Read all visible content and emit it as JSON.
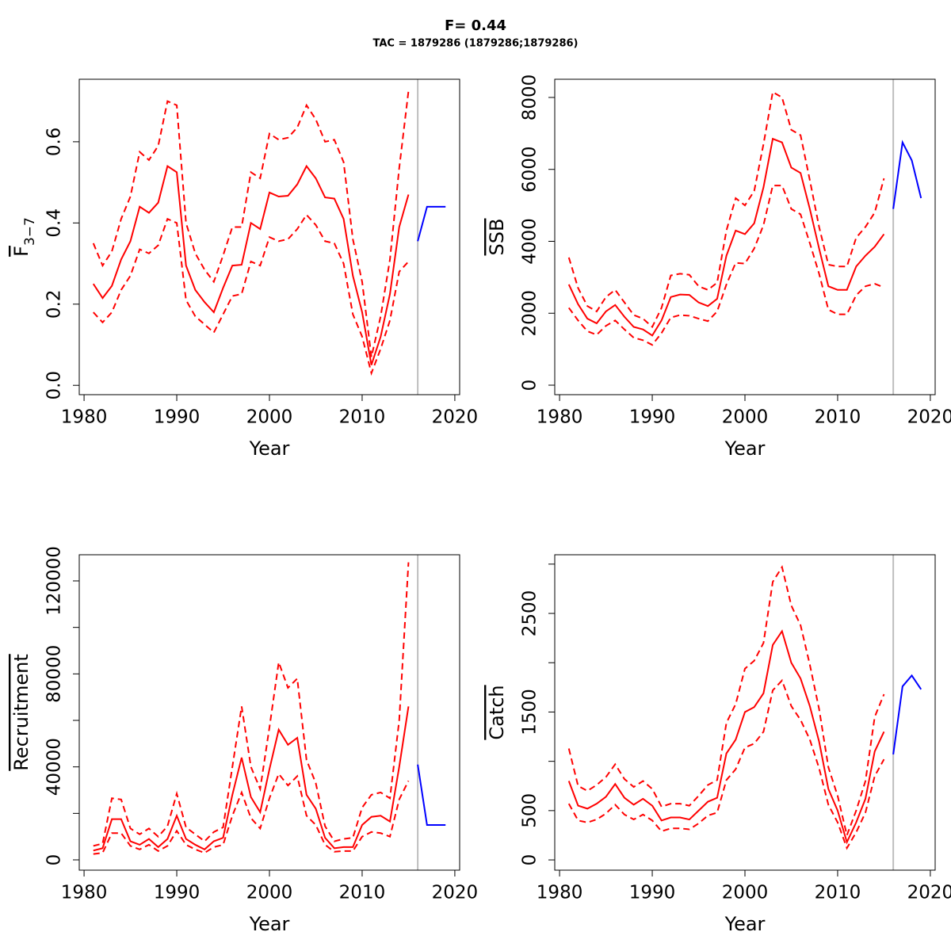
{
  "title": "F= 0.44",
  "subtitle": "TAC = 1879286 (1879286;1879286)",
  "chart_data": [
    {
      "type": "line",
      "xlabel": "Year",
      "ylabel": "F",
      "ylabel_sub": "3−7",
      "x": [
        1981,
        1982,
        1983,
        1984,
        1985,
        1986,
        1987,
        1988,
        1989,
        1990,
        1991,
        1992,
        1993,
        1994,
        1995,
        1996,
        1997,
        1998,
        1999,
        2000,
        2001,
        2002,
        2003,
        2004,
        2005,
        2006,
        2007,
        2008,
        2009,
        2010,
        2011,
        2012,
        2013,
        2014,
        2015,
        2016,
        2017,
        2018,
        2019
      ],
      "xlim": [
        1979.48,
        2020.52
      ],
      "xticks": [
        1980,
        1990,
        2000,
        2010,
        2020
      ],
      "ylim": [
        -0.023,
        0.754
      ],
      "yticks": [
        {
          "value": 0,
          "label": "0.0"
        },
        0.2,
        0.4,
        0.6
      ],
      "vline": 2016,
      "vline_color": "#bebebe",
      "series": [
        {
          "color": "#ff0000",
          "dashed": false,
          "values": [
            0.25,
            0.215,
            0.245,
            0.31,
            0.355,
            0.44,
            0.425,
            0.45,
            0.54,
            0.525,
            0.295,
            0.235,
            0.205,
            0.18,
            0.24,
            0.295,
            0.297,
            0.4,
            0.385,
            0.475,
            0.465,
            0.467,
            0.495,
            0.54,
            0.51,
            0.463,
            0.46,
            0.41,
            0.27,
            0.18,
            0.05,
            0.12,
            0.225,
            0.39,
            0.47,
            null,
            null,
            null,
            null
          ]
        },
        {
          "color": "#ff0000",
          "dashed": true,
          "values": [
            0.35,
            0.295,
            0.33,
            0.41,
            0.465,
            0.575,
            0.555,
            0.59,
            0.7,
            0.69,
            0.4,
            0.325,
            0.285,
            0.255,
            0.32,
            0.39,
            0.39,
            0.525,
            0.51,
            0.62,
            0.605,
            0.61,
            0.635,
            0.69,
            0.655,
            0.6,
            0.605,
            0.55,
            0.36,
            0.255,
            0.07,
            0.17,
            0.31,
            0.535,
            0.725,
            null,
            null,
            null,
            null
          ]
        },
        {
          "color": "#ff0000",
          "dashed": true,
          "values": [
            0.18,
            0.155,
            0.18,
            0.235,
            0.27,
            0.335,
            0.325,
            0.345,
            0.41,
            0.4,
            0.21,
            0.17,
            0.15,
            0.13,
            0.175,
            0.22,
            0.225,
            0.305,
            0.295,
            0.365,
            0.355,
            0.36,
            0.385,
            0.42,
            0.395,
            0.355,
            0.35,
            0.3,
            0.175,
            0.12,
            0.03,
            0.09,
            0.16,
            0.28,
            0.305,
            null,
            null,
            null,
            null
          ]
        },
        {
          "color": "#0000ff",
          "dashed": false,
          "values": [
            null,
            null,
            null,
            null,
            null,
            null,
            null,
            null,
            null,
            null,
            null,
            null,
            null,
            null,
            null,
            null,
            null,
            null,
            null,
            null,
            null,
            null,
            null,
            null,
            null,
            null,
            null,
            null,
            null,
            null,
            null,
            null,
            null,
            null,
            null,
            0.355,
            0.44,
            0.44,
            0.44
          ]
        }
      ]
    },
    {
      "type": "line",
      "xlabel": "Year",
      "ylabel": "SSB",
      "x": [
        1981,
        1982,
        1983,
        1984,
        1985,
        1986,
        1987,
        1988,
        1989,
        1990,
        1991,
        1992,
        1993,
        1994,
        1995,
        1996,
        1997,
        1998,
        1999,
        2000,
        2001,
        2002,
        2003,
        2004,
        2005,
        2006,
        2007,
        2008,
        2009,
        2010,
        2011,
        2012,
        2013,
        2014,
        2015,
        2016,
        2017,
        2018,
        2019
      ],
      "xlim": [
        1979.48,
        2020.52
      ],
      "xticks": [
        1980,
        1990,
        2000,
        2010,
        2020
      ],
      "ylim": [
        -264,
        8506
      ],
      "yticks": [
        0,
        2000,
        4000,
        6000,
        8000
      ],
      "vline": 2016,
      "vline_color": "#bebebe",
      "series": [
        {
          "color": "#ff0000",
          "dashed": false,
          "values": [
            2800,
            2250,
            1850,
            1720,
            2050,
            2230,
            1900,
            1620,
            1550,
            1380,
            1800,
            2450,
            2520,
            2510,
            2300,
            2200,
            2400,
            3600,
            4300,
            4200,
            4500,
            5500,
            6850,
            6750,
            6050,
            5900,
            4900,
            3800,
            2750,
            2650,
            2650,
            3300,
            3600,
            3850,
            4200,
            null,
            null,
            null,
            null
          ]
        },
        {
          "color": "#ff0000",
          "dashed": true,
          "values": [
            3550,
            2700,
            2200,
            2050,
            2450,
            2650,
            2300,
            1950,
            1850,
            1620,
            2150,
            3050,
            3100,
            3070,
            2750,
            2650,
            2850,
            4300,
            5200,
            5000,
            5400,
            6700,
            8150,
            8000,
            7100,
            6950,
            5700,
            4400,
            3350,
            3300,
            3300,
            4100,
            4400,
            4800,
            5750,
            null,
            null,
            null,
            null
          ]
        },
        {
          "color": "#ff0000",
          "dashed": true,
          "values": [
            2150,
            1800,
            1500,
            1400,
            1650,
            1800,
            1550,
            1320,
            1250,
            1120,
            1450,
            1880,
            1950,
            1930,
            1850,
            1780,
            2050,
            2800,
            3400,
            3380,
            3800,
            4450,
            5550,
            5550,
            4900,
            4750,
            3950,
            3100,
            2100,
            1970,
            1970,
            2500,
            2750,
            2820,
            2720,
            null,
            null,
            null,
            null
          ]
        },
        {
          "color": "#0000ff",
          "dashed": false,
          "values": [
            null,
            null,
            null,
            null,
            null,
            null,
            null,
            null,
            null,
            null,
            null,
            null,
            null,
            null,
            null,
            null,
            null,
            null,
            null,
            null,
            null,
            null,
            null,
            null,
            null,
            null,
            null,
            null,
            null,
            null,
            null,
            null,
            null,
            null,
            null,
            4900,
            6750,
            6250,
            5200
          ]
        }
      ]
    },
    {
      "type": "line",
      "xlabel": "Year",
      "ylabel": "Recruitment",
      "x": [
        1981,
        1982,
        1983,
        1984,
        1985,
        1986,
        1987,
        1988,
        1989,
        1990,
        1991,
        1992,
        1993,
        1994,
        1995,
        1996,
        1997,
        1998,
        1999,
        2000,
        2001,
        2002,
        2003,
        2004,
        2005,
        2006,
        2007,
        2008,
        2009,
        2010,
        2011,
        2012,
        2013,
        2014,
        2015,
        2016,
        2017,
        2018,
        2019
      ],
      "xlim": [
        1979.48,
        2020.52
      ],
      "xticks": [
        1980,
        1990,
        2000,
        2010,
        2020
      ],
      "ylim": [
        -4430,
        131250
      ],
      "yticks": [
        0,
        40000,
        80000,
        120000
      ],
      "yminor_ticks": [
        20000,
        60000,
        100000
      ],
      "vline": 2016,
      "vline_color": "#bebebe",
      "series": [
        {
          "color": "#ff0000",
          "dashed": false,
          "values": [
            4000,
            5000,
            17500,
            17500,
            8000,
            6500,
            9000,
            5500,
            9000,
            19000,
            9000,
            6500,
            4500,
            8000,
            9500,
            28000,
            44000,
            27000,
            20500,
            39000,
            56000,
            49500,
            52500,
            28000,
            22000,
            9500,
            5000,
            5500,
            5500,
            15000,
            18500,
            19000,
            16500,
            40000,
            66000,
            null,
            null,
            null,
            null
          ]
        },
        {
          "color": "#ff0000",
          "dashed": true,
          "values": [
            6000,
            7000,
            26500,
            26000,
            13500,
            11000,
            13500,
            10000,
            14500,
            28500,
            14000,
            11000,
            8000,
            12000,
            14000,
            40000,
            66000,
            40000,
            30500,
            57000,
            85000,
            74000,
            78000,
            43000,
            33000,
            14500,
            8000,
            9000,
            9500,
            22500,
            28000,
            29000,
            26500,
            60000,
            128000,
            null,
            null,
            null,
            null
          ]
        },
        {
          "color": "#ff0000",
          "dashed": true,
          "values": [
            2500,
            3000,
            11500,
            11500,
            6000,
            4500,
            6500,
            3800,
            6000,
            12500,
            6500,
            4500,
            3000,
            5500,
            6500,
            19000,
            29000,
            18000,
            13500,
            26500,
            37000,
            32000,
            36000,
            19000,
            15000,
            6500,
            3500,
            3800,
            3800,
            10000,
            12000,
            11500,
            10000,
            26000,
            34000,
            null,
            null,
            null,
            null
          ]
        },
        {
          "color": "#0000ff",
          "dashed": false,
          "values": [
            null,
            null,
            null,
            null,
            null,
            null,
            null,
            null,
            null,
            null,
            null,
            null,
            null,
            null,
            null,
            null,
            null,
            null,
            null,
            null,
            null,
            null,
            null,
            null,
            null,
            null,
            null,
            null,
            null,
            null,
            null,
            null,
            null,
            null,
            null,
            41000,
            15000,
            15000,
            15000
          ]
        }
      ]
    },
    {
      "type": "line",
      "xlabel": "Year",
      "ylabel": "Catch",
      "x": [
        1981,
        1982,
        1983,
        1984,
        1985,
        1986,
        1987,
        1988,
        1989,
        1990,
        1991,
        1992,
        1993,
        1994,
        1995,
        1996,
        1997,
        1998,
        1999,
        2000,
        2001,
        2002,
        2003,
        2004,
        2005,
        2006,
        2007,
        2008,
        2009,
        2010,
        2011,
        2012,
        2013,
        2014,
        2015,
        2016,
        2017,
        2018,
        2019
      ],
      "xlim": [
        1979.48,
        2020.52
      ],
      "xticks": [
        1980,
        1990,
        2000,
        2010,
        2020
      ],
      "ylim": [
        -104,
        3095
      ],
      "yticks": [
        0,
        500,
        1500,
        2500
      ],
      "yminor_ticks": [
        1000,
        2000,
        3000
      ],
      "vline": 2016,
      "vline_color": "#bebebe",
      "series": [
        {
          "color": "#ff0000",
          "dashed": false,
          "values": [
            800,
            550,
            520,
            570,
            640,
            770,
            630,
            560,
            620,
            550,
            400,
            430,
            430,
            410,
            500,
            590,
            630,
            1080,
            1220,
            1500,
            1550,
            1690,
            2180,
            2320,
            2000,
            1840,
            1560,
            1200,
            720,
            500,
            180,
            380,
            620,
            1100,
            1300,
            null,
            null,
            null,
            null
          ]
        },
        {
          "color": "#ff0000",
          "dashed": true,
          "values": [
            1130,
            750,
            700,
            760,
            840,
            970,
            820,
            740,
            800,
            720,
            540,
            570,
            570,
            550,
            650,
            760,
            810,
            1390,
            1580,
            1940,
            2020,
            2200,
            2820,
            2970,
            2580,
            2380,
            1980,
            1530,
            940,
            650,
            250,
            500,
            800,
            1450,
            1680,
            null,
            null,
            null,
            null
          ]
        },
        {
          "color": "#ff0000",
          "dashed": true,
          "values": [
            570,
            400,
            380,
            410,
            470,
            560,
            460,
            410,
            460,
            400,
            290,
            320,
            320,
            310,
            370,
            450,
            480,
            810,
            920,
            1140,
            1180,
            1300,
            1720,
            1820,
            1560,
            1420,
            1220,
            930,
            560,
            380,
            120,
            280,
            480,
            850,
            1020,
            null,
            null,
            null,
            null
          ]
        },
        {
          "color": "#0000ff",
          "dashed": false,
          "values": [
            null,
            null,
            null,
            null,
            null,
            null,
            null,
            null,
            null,
            null,
            null,
            null,
            null,
            null,
            null,
            null,
            null,
            null,
            null,
            null,
            null,
            null,
            null,
            null,
            null,
            null,
            null,
            null,
            null,
            null,
            null,
            null,
            null,
            null,
            null,
            1070,
            1760,
            1870,
            1730
          ]
        }
      ]
    }
  ]
}
